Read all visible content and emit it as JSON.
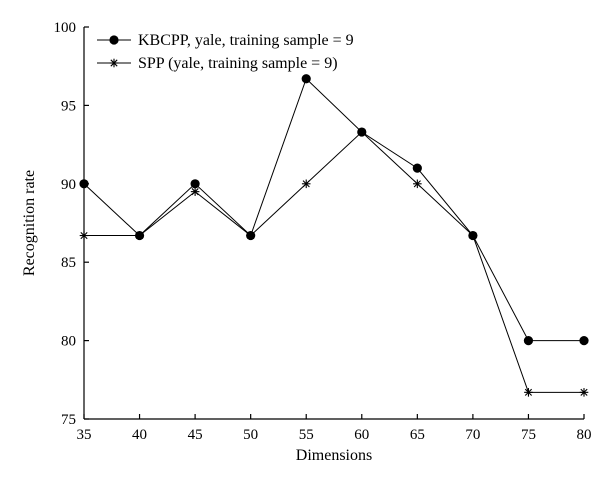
{
  "chart_data": {
    "type": "line",
    "title": "",
    "xlabel": "Dimensions",
    "ylabel": "Recognition rate",
    "x": [
      35,
      40,
      45,
      50,
      55,
      60,
      65,
      70,
      75,
      80
    ],
    "xlim": [
      35,
      80
    ],
    "ylim": [
      75,
      100
    ],
    "xticks": [
      "35",
      "40",
      "45",
      "50",
      "55",
      "60",
      "65",
      "70",
      "75",
      "80"
    ],
    "yticks": [
      "75",
      "80",
      "85",
      "90",
      "95",
      "100"
    ],
    "grid": false,
    "legend_position": "top-left",
    "series": [
      {
        "name": "KBCPP, yale, training sample = 9",
        "marker": "circle",
        "color": "#000000",
        "values": [
          90.0,
          86.7,
          90.0,
          86.7,
          96.7,
          93.3,
          91.0,
          86.7,
          80.0,
          80.0
        ]
      },
      {
        "name": "SPP (yale, training sample = 9)",
        "marker": "asterisk",
        "color": "#000000",
        "values": [
          86.7,
          86.7,
          89.5,
          86.7,
          90.0,
          93.3,
          90.0,
          86.7,
          76.7,
          76.7
        ]
      }
    ]
  }
}
